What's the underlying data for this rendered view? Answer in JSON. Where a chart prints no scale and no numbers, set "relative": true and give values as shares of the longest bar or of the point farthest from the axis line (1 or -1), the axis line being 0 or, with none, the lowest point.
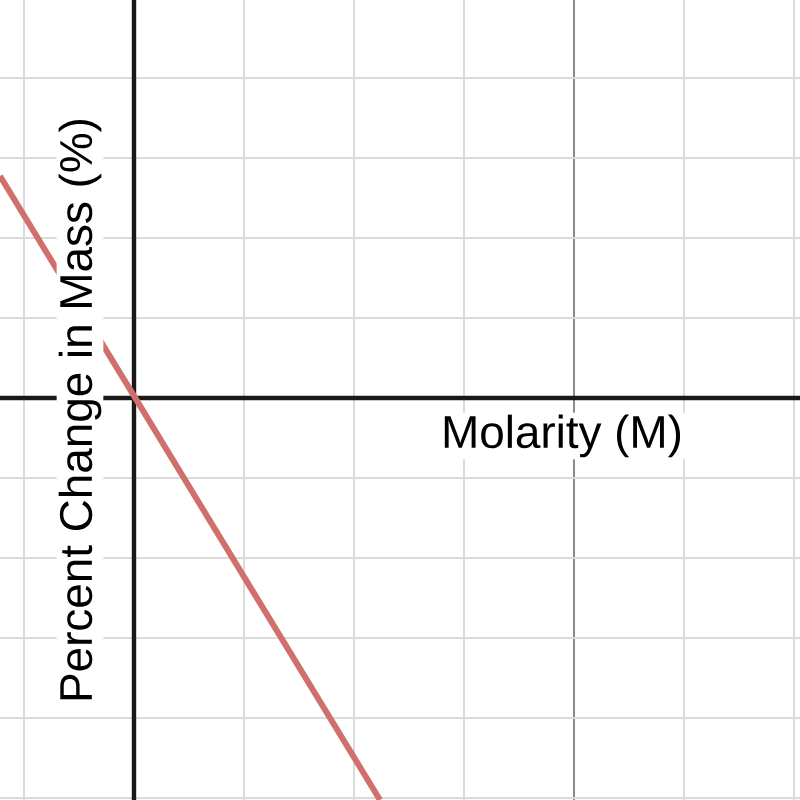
{
  "chart_data": {
    "type": "line",
    "xlabel": "Molarity (M)",
    "ylabel": "Percent Change in Mass (%)",
    "categories": [
      null,
      null,
      null,
      null
    ],
    "series": [
      {
        "color": "#d0706c",
        "values": [
          0.552,
          0.035,
          -0.483,
          -1
        ]
      }
    ],
    "relative": true,
    "grid": true,
    "tick_labels": false,
    "marker": "none",
    "line_style": "solid"
  }
}
